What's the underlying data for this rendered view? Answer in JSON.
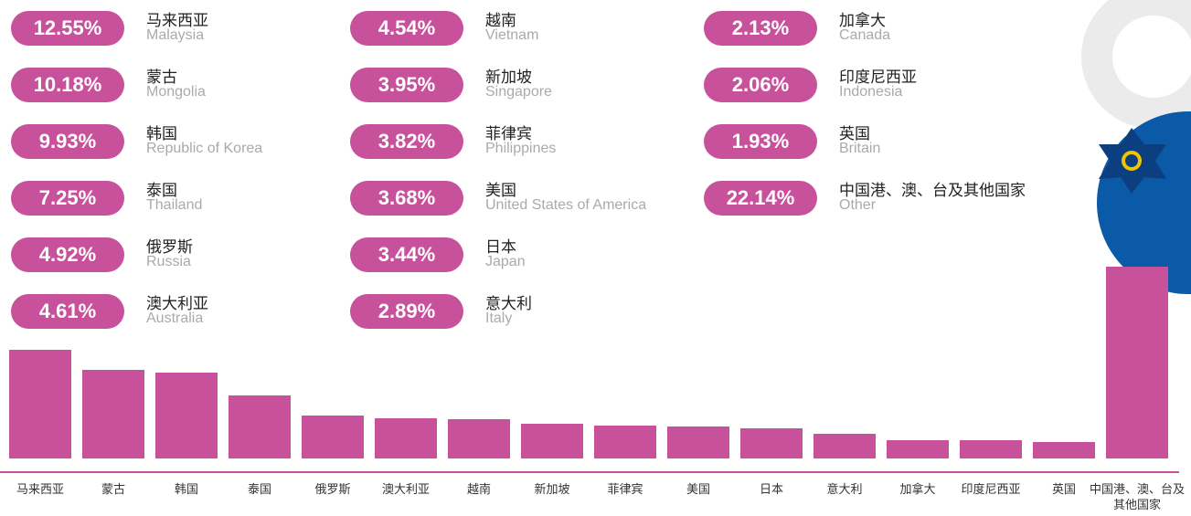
{
  "chart_data": {
    "type": "bar",
    "categories": [
      "马来西亚",
      "蒙古",
      "韩国",
      "泰国",
      "俄罗斯",
      "澳大利亚",
      "越南",
      "新加坡",
      "菲律宾",
      "美国",
      "日本",
      "意大利",
      "加拿大",
      "印度尼西亚",
      "英国",
      "中国港、澳、台及其他国家"
    ],
    "categories_en": [
      "Malaysia",
      "Mongolia",
      "Republic of Korea",
      "Thailand",
      "Russia",
      "Australia",
      "Vietnam",
      "Singapore",
      "Philippines",
      "United States of America",
      "Japan",
      "Italy",
      "Canada",
      "Indonesia",
      "Britain",
      "Other"
    ],
    "values": [
      12.55,
      10.18,
      9.93,
      7.25,
      4.92,
      4.61,
      4.54,
      3.95,
      3.82,
      3.68,
      3.44,
      2.89,
      2.13,
      2.06,
      1.93,
      22.14
    ],
    "value_labels": [
      "12.55%",
      "10.18%",
      "9.93%",
      "7.25%",
      "4.92%",
      "4.61%",
      "4.54%",
      "3.95%",
      "3.82%",
      "3.68%",
      "3.44%",
      "2.89%",
      "2.13%",
      "2.06%",
      "1.93%",
      "22.14%"
    ],
    "color": "#c8519b"
  }
}
